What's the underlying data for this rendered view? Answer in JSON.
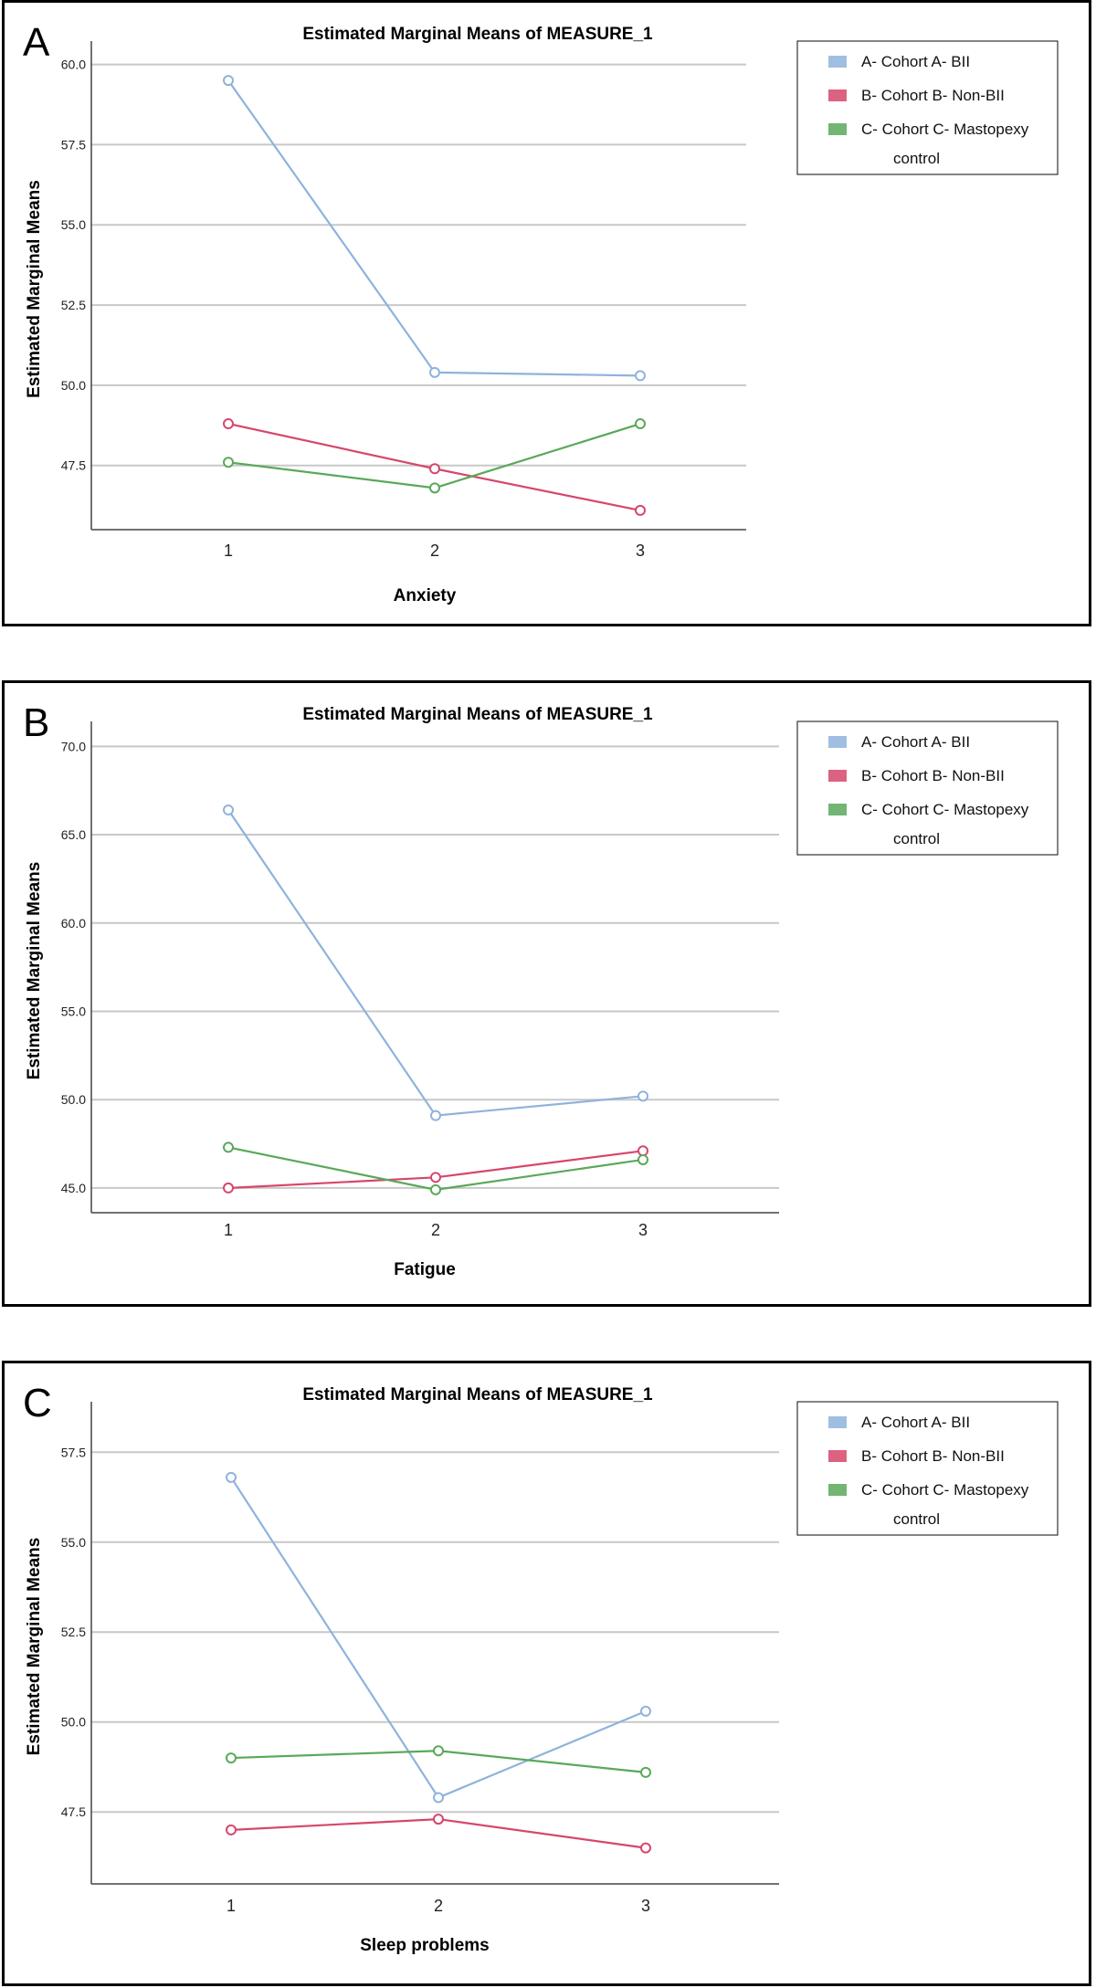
{
  "chart_data": [
    {
      "panel_label": "A",
      "type": "line",
      "title": "Estimated Marginal Means of MEASURE_1",
      "xlabel": "Anxiety",
      "ylabel": "Estimated Marginal Means",
      "categories": [
        "1",
        "2",
        "3"
      ],
      "yticks": [
        "47.5",
        "50.0",
        "52.5",
        "55.0",
        "57.5",
        "60.0"
      ],
      "ylim": [
        45.5,
        60.5
      ],
      "grid": true,
      "legend_position": "top-right",
      "series": [
        {
          "name": "A- Cohort A- BII",
          "color": "#8fb3dc",
          "values": [
            59.5,
            50.4,
            50.3
          ]
        },
        {
          "name": "B- Cohort B- Non-BII",
          "color": "#d6476b",
          "values": [
            48.8,
            47.4,
            46.1
          ]
        },
        {
          "name": "C- Cohort C- Mastopexy control",
          "color": "#5aa85a",
          "values": [
            47.6,
            46.8,
            48.8
          ]
        }
      ]
    },
    {
      "panel_label": "B",
      "type": "line",
      "title": "Estimated Marginal Means of MEASURE_1",
      "xlabel": "Fatigue",
      "ylabel": "Estimated Marginal Means",
      "categories": [
        "1",
        "2",
        "3"
      ],
      "yticks": [
        "45.0",
        "50.0",
        "55.0",
        "60.0",
        "65.0",
        "70.0"
      ],
      "ylim": [
        43.6,
        71.0
      ],
      "grid": true,
      "legend_position": "top-right",
      "series": [
        {
          "name": "A- Cohort A- BII",
          "color": "#8fb3dc",
          "values": [
            66.4,
            49.1,
            50.2
          ]
        },
        {
          "name": "B- Cohort B- Non-BII",
          "color": "#d6476b",
          "values": [
            45.0,
            45.6,
            47.1
          ]
        },
        {
          "name": "C- Cohort C- Mastopexy control",
          "color": "#5aa85a",
          "values": [
            47.3,
            44.9,
            46.6
          ]
        }
      ]
    },
    {
      "panel_label": "C",
      "type": "line",
      "title": "Estimated Marginal Means of MEASURE_1",
      "xlabel": "Sleep problems",
      "ylabel": "Estimated Marginal Means",
      "categories": [
        "1",
        "2",
        "3"
      ],
      "yticks": [
        "47.5",
        "50.0",
        "52.5",
        "55.0",
        "57.5"
      ],
      "ylim": [
        45.5,
        58.7
      ],
      "grid": true,
      "legend_position": "top-right",
      "series": [
        {
          "name": "A- Cohort A- BII",
          "color": "#8fb3dc",
          "values": [
            56.8,
            47.9,
            50.3
          ]
        },
        {
          "name": "B- Cohort B- Non-BII",
          "color": "#d6476b",
          "values": [
            47.0,
            47.3,
            46.5
          ]
        },
        {
          "name": "C- Cohort C- Mastopexy control",
          "color": "#5aa85a",
          "values": [
            49.0,
            49.2,
            48.6
          ]
        }
      ]
    }
  ]
}
